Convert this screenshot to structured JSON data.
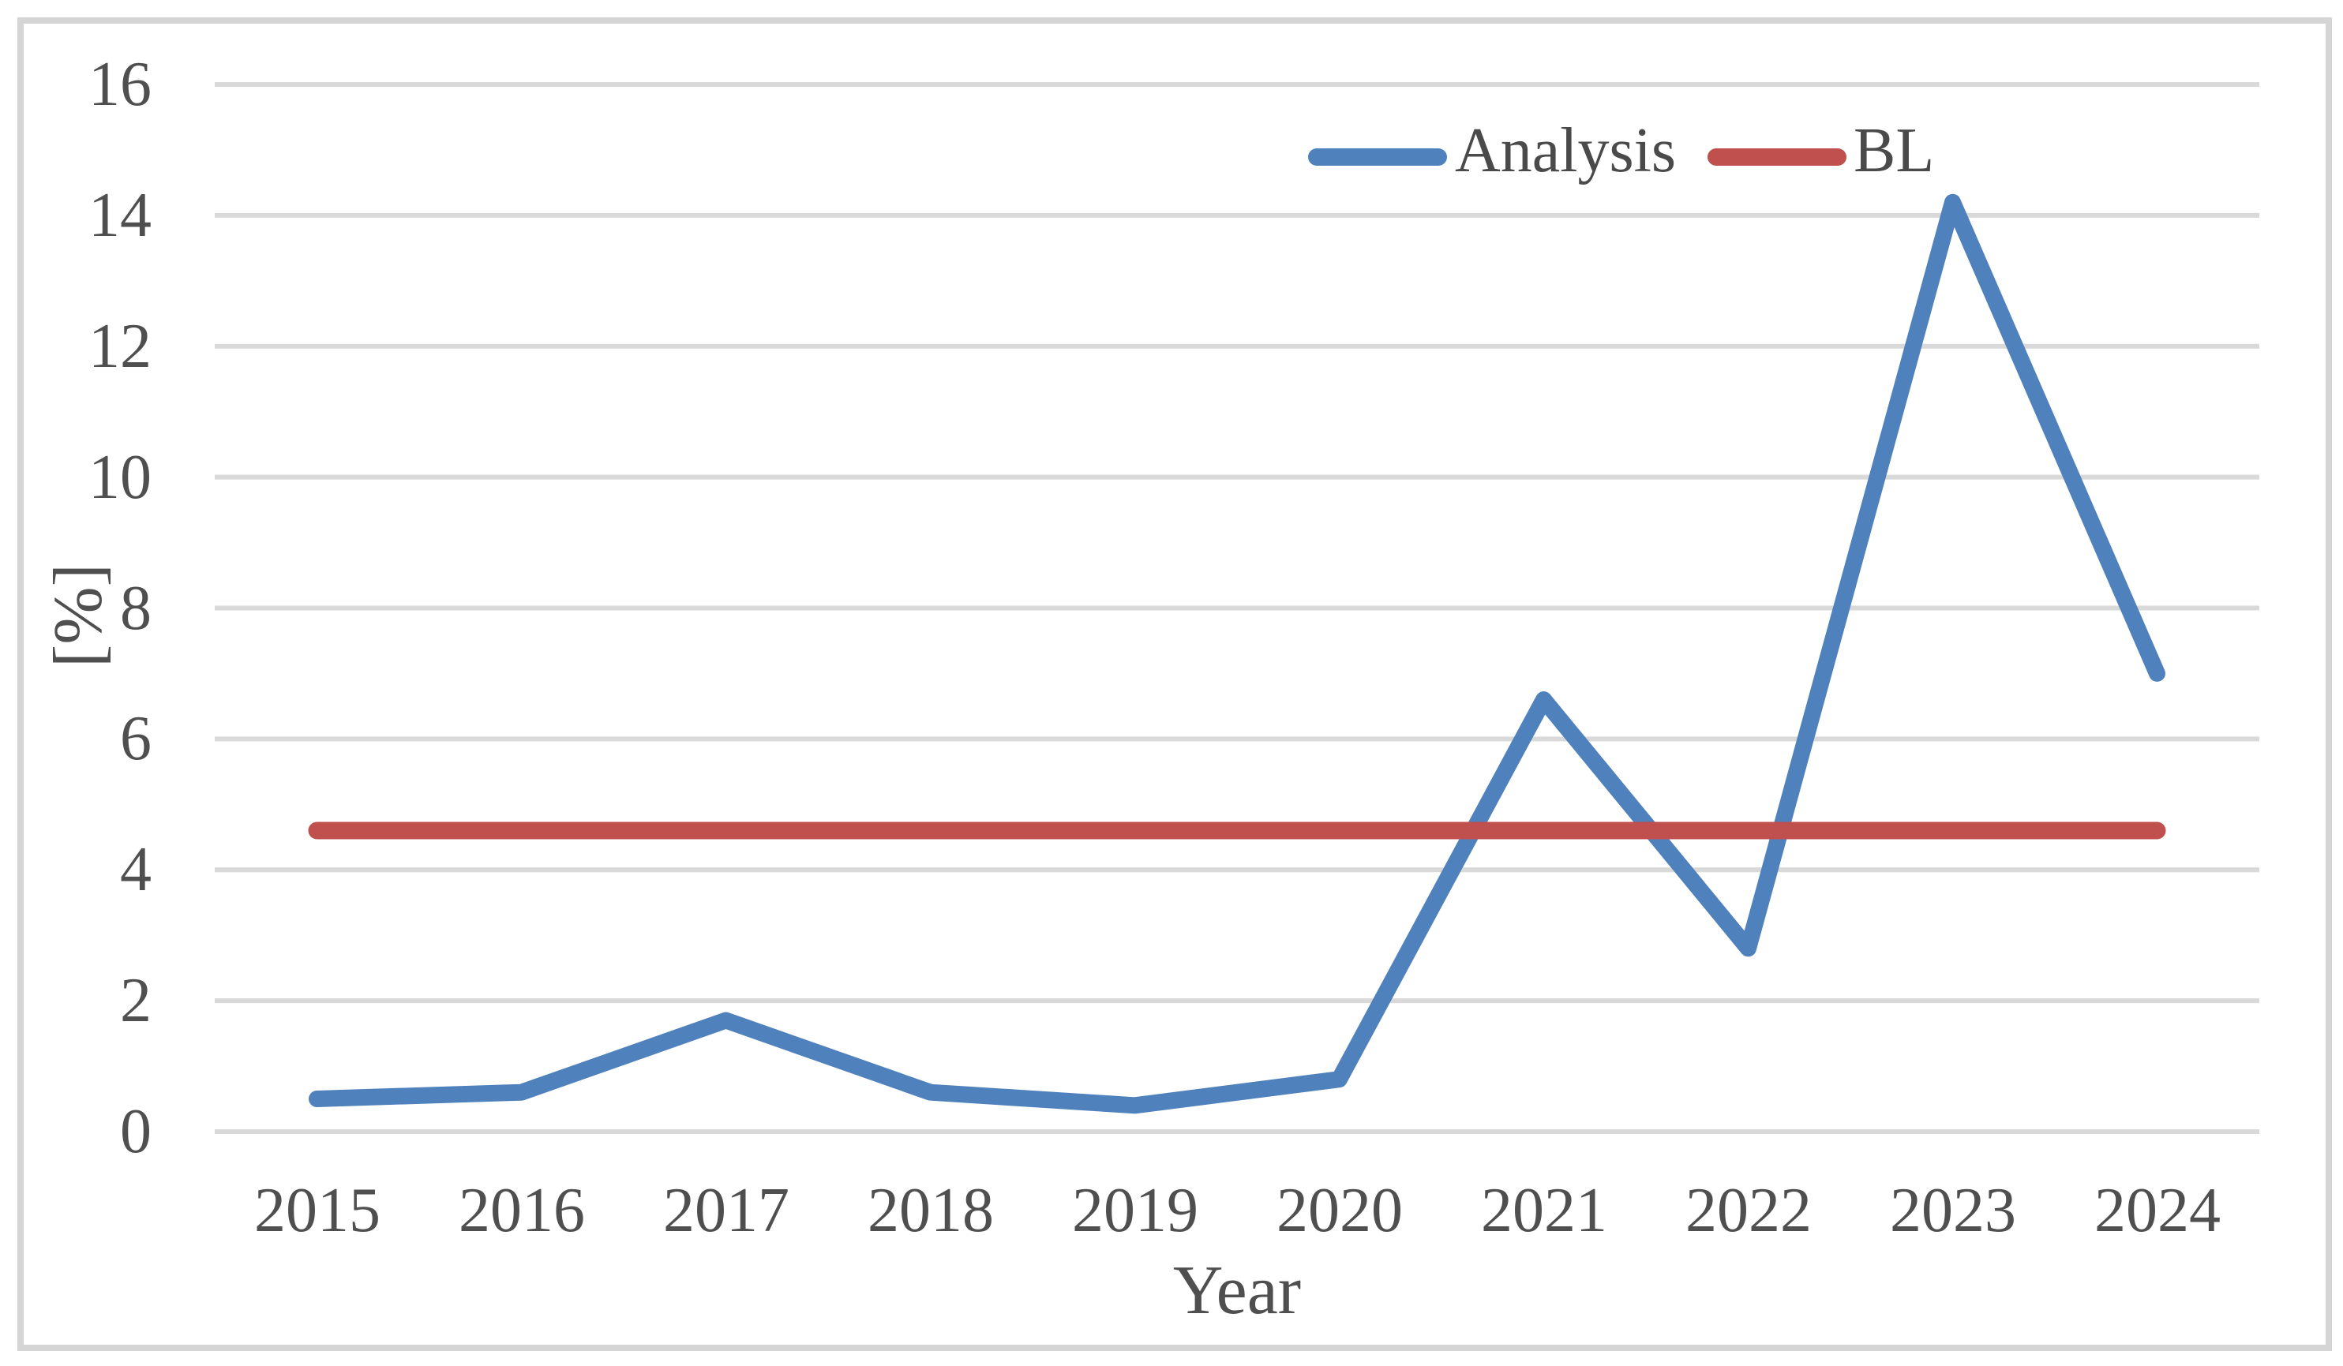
{
  "figure": {
    "background": "#ffffff",
    "border_color": "#d5d5d5"
  },
  "chart_data": {
    "type": "line",
    "title": "",
    "xlabel": "Year",
    "ylabel": "[%]",
    "categories": [
      "2015",
      "2016",
      "2017",
      "2018",
      "2019",
      "2020",
      "2021",
      "2022",
      "2023",
      "2024"
    ],
    "series": [
      {
        "name": "Analysis",
        "color": "#4F81BD",
        "values": [
          0.5,
          0.6,
          1.7,
          0.6,
          0.4,
          0.8,
          6.6,
          2.8,
          14.2,
          7.0
        ]
      },
      {
        "name": "BL",
        "color": "#C0504D",
        "values": [
          4.6,
          4.6,
          4.6,
          4.6,
          4.6,
          4.6,
          4.6,
          4.6,
          4.6,
          4.6
        ]
      }
    ],
    "ylim": [
      0,
      16
    ],
    "y_tick_step": 2,
    "y_ticks": [
      "0",
      "2",
      "4",
      "6",
      "8",
      "10",
      "12",
      "14",
      "16"
    ],
    "x_ticks": [
      "2015",
      "2016",
      "2017",
      "2018",
      "2019",
      "2020",
      "2021",
      "2022",
      "2023",
      "2024"
    ],
    "grid": true,
    "gridline_color": "#D9D9D9",
    "axis_text_color": "#4F4F4F",
    "legend": {
      "position": "top-center",
      "items": [
        {
          "label": "Analysis",
          "color": "#4F81BD"
        },
        {
          "label": "BL",
          "color": "#C0504D"
        }
      ]
    }
  }
}
